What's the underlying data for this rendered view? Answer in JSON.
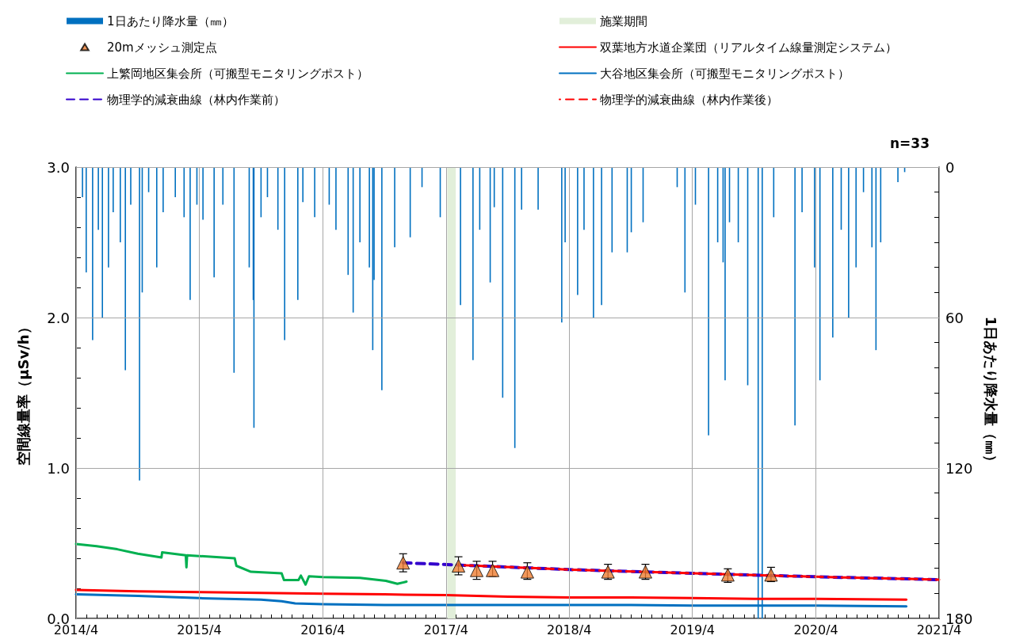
{
  "chart_data": {
    "type": "line",
    "ylabel": "空間線量率（μSv/h）",
    "y2label": "1日あたり降水量（㎜）",
    "annotations": [
      "n=33"
    ],
    "legend": "top",
    "grid": true,
    "xlim": [
      "2014-04-01",
      "2021-04-01"
    ],
    "xticks": [
      {
        "value": "2014-04-01",
        "label": "2014/4"
      },
      {
        "value": "2014-05-01",
        "label": null
      },
      {
        "value": "2014-06-01",
        "label": null
      },
      {
        "value": "2014-07-01",
        "label": null
      },
      {
        "value": "2014-08-01",
        "label": null
      },
      {
        "value": "2014-09-01",
        "label": null
      },
      {
        "value": "2014-10-01",
        "label": null
      },
      {
        "value": "2014-11-01",
        "label": null
      },
      {
        "value": "2014-12-01",
        "label": null
      },
      {
        "value": "2015-01-01",
        "label": null
      },
      {
        "value": "2015-02-01",
        "label": null
      },
      {
        "value": "2015-03-01",
        "label": null
      },
      {
        "value": "2015-04-01",
        "label": "2015/4"
      },
      {
        "value": "2015-05-01",
        "label": null
      },
      {
        "value": "2015-06-01",
        "label": null
      },
      {
        "value": "2015-07-01",
        "label": null
      },
      {
        "value": "2015-08-01",
        "label": null
      },
      {
        "value": "2015-09-01",
        "label": null
      },
      {
        "value": "2015-10-01",
        "label": null
      },
      {
        "value": "2015-11-01",
        "label": null
      },
      {
        "value": "2015-12-01",
        "label": null
      },
      {
        "value": "2016-01-01",
        "label": null
      },
      {
        "value": "2016-02-01",
        "label": null
      },
      {
        "value": "2016-03-01",
        "label": null
      },
      {
        "value": "2016-04-01",
        "label": "2016/4"
      },
      {
        "value": "2016-05-01",
        "label": null
      },
      {
        "value": "2016-06-01",
        "label": null
      },
      {
        "value": "2016-07-01",
        "label": null
      },
      {
        "value": "2016-08-01",
        "label": null
      },
      {
        "value": "2016-09-01",
        "label": null
      },
      {
        "value": "2016-10-01",
        "label": null
      },
      {
        "value": "2016-11-01",
        "label": null
      },
      {
        "value": "2016-12-01",
        "label": null
      },
      {
        "value": "2017-01-01",
        "label": null
      },
      {
        "value": "2017-02-01",
        "label": null
      },
      {
        "value": "2017-03-01",
        "label": null
      },
      {
        "value": "2017-04-01",
        "label": "2017/4"
      },
      {
        "value": "2017-05-01",
        "label": null
      },
      {
        "value": "2017-06-01",
        "label": null
      },
      {
        "value": "2017-07-01",
        "label": null
      },
      {
        "value": "2017-08-01",
        "label": null
      },
      {
        "value": "2017-09-01",
        "label": null
      },
      {
        "value": "2017-10-01",
        "label": null
      },
      {
        "value": "2017-11-01",
        "label": null
      },
      {
        "value": "2017-12-01",
        "label": null
      },
      {
        "value": "2018-01-01",
        "label": null
      },
      {
        "value": "2018-02-01",
        "label": null
      },
      {
        "value": "2018-03-01",
        "label": null
      },
      {
        "value": "2018-04-01",
        "label": "2018/4"
      },
      {
        "value": "2018-05-01",
        "label": null
      },
      {
        "value": "2018-06-01",
        "label": null
      },
      {
        "value": "2018-07-01",
        "label": null
      },
      {
        "value": "2018-08-01",
        "label": null
      },
      {
        "value": "2018-09-01",
        "label": null
      },
      {
        "value": "2018-10-01",
        "label": null
      },
      {
        "value": "2018-11-01",
        "label": null
      },
      {
        "value": "2018-12-01",
        "label": null
      },
      {
        "value": "2019-01-01",
        "label": null
      },
      {
        "value": "2019-02-01",
        "label": null
      },
      {
        "value": "2019-03-01",
        "label": null
      },
      {
        "value": "2019-04-01",
        "label": "2019/4"
      },
      {
        "value": "2019-05-01",
        "label": null
      },
      {
        "value": "2019-06-01",
        "label": null
      },
      {
        "value": "2019-07-01",
        "label": null
      },
      {
        "value": "2019-08-01",
        "label": null
      },
      {
        "value": "2019-09-01",
        "label": null
      },
      {
        "value": "2019-10-01",
        "label": null
      },
      {
        "value": "2019-11-01",
        "label": null
      },
      {
        "value": "2019-12-01",
        "label": null
      },
      {
        "value": "2020-01-01",
        "label": null
      },
      {
        "value": "2020-02-01",
        "label": null
      },
      {
        "value": "2020-03-01",
        "label": null
      },
      {
        "value": "2020-04-01",
        "label": "2020/4"
      },
      {
        "value": "2020-05-01",
        "label": null
      },
      {
        "value": "2020-06-01",
        "label": null
      },
      {
        "value": "2020-07-01",
        "label": null
      },
      {
        "value": "2020-08-01",
        "label": null
      },
      {
        "value": "2020-09-01",
        "label": null
      },
      {
        "value": "2020-10-01",
        "label": null
      },
      {
        "value": "2020-11-01",
        "label": null
      },
      {
        "value": "2020-12-01",
        "label": null
      },
      {
        "value": "2021-01-01",
        "label": null
      },
      {
        "value": "2021-02-01",
        "label": null
      },
      {
        "value": "2021-03-01",
        "label": null
      },
      {
        "value": "2021-04-01",
        "label": "2021/4"
      }
    ],
    "ylim": [
      0,
      3
    ],
    "yticks": [
      {
        "value": 0,
        "label": "0.0"
      },
      {
        "value": 0.2,
        "label": null
      },
      {
        "value": 0.4,
        "label": null
      },
      {
        "value": 0.6,
        "label": null
      },
      {
        "value": 0.8,
        "label": null
      },
      {
        "value": 1,
        "label": "1.0"
      },
      {
        "value": 1.2,
        "label": null
      },
      {
        "value": 1.4,
        "label": null
      },
      {
        "value": 1.6,
        "label": null
      },
      {
        "value": 1.8,
        "label": null
      },
      {
        "value": 2,
        "label": "2.0"
      },
      {
        "value": 2.2,
        "label": null
      },
      {
        "value": 2.4,
        "label": null
      },
      {
        "value": 2.6,
        "label": null
      },
      {
        "value": 2.8,
        "label": null
      },
      {
        "value": 3,
        "label": "3.0"
      }
    ],
    "y2lim": [
      180,
      0
    ],
    "y2ticks": [
      0,
      {
        "value": 10,
        "label": null
      },
      {
        "value": 20,
        "label": null
      },
      {
        "value": 30,
        "label": null
      },
      {
        "value": 40,
        "label": null
      },
      {
        "value": 50,
        "label": null
      },
      60,
      {
        "value": 70,
        "label": null
      },
      {
        "value": 80,
        "label": null
      },
      {
        "value": 90,
        "label": null
      },
      {
        "value": 100,
        "label": null
      },
      {
        "value": 110,
        "label": null
      },
      120,
      {
        "value": 130,
        "label": null
      },
      {
        "value": 140,
        "label": null
      },
      {
        "value": 150,
        "label": null
      },
      {
        "value": 160,
        "label": null
      },
      {
        "value": 170,
        "label": null
      },
      180
    ],
    "bands": [
      {
        "axis": "x",
        "from": "2017-04-05",
        "to": "2017-04-30",
        "label": "施業期間",
        "color": "#e2efda"
      }
    ],
    "series": [
      {
        "name": "1日あたり降水量（㎜）",
        "type": "bar",
        "axis": "y2",
        "color": "#0070c0",
        "x": [
          "2014-04-20",
          "2014-05-01",
          "2014-05-20",
          "2014-06-06",
          "2014-06-18",
          "2014-07-06",
          "2014-07-20",
          "2014-08-10",
          "2014-08-25",
          "2014-09-10",
          "2014-10-06",
          "2014-10-14",
          "2014-11-02",
          "2014-11-26",
          "2014-12-15",
          "2015-01-20",
          "2015-02-15",
          "2015-03-05",
          "2015-03-25",
          "2015-04-12",
          "2015-05-15",
          "2015-06-10",
          "2015-07-13",
          "2015-08-27",
          "2015-09-08",
          "2015-09-10",
          "2015-10-01",
          "2015-10-20",
          "2015-11-20",
          "2015-12-10",
          "2016-01-18",
          "2016-02-02",
          "2016-03-08",
          "2016-04-20",
          "2016-05-10",
          "2016-06-15",
          "2016-06-30",
          "2016-07-20",
          "2016-08-17",
          "2016-08-27",
          "2016-08-31",
          "2016-09-23",
          "2016-10-31",
          "2016-12-16",
          "2017-01-20",
          "2017-03-15",
          "2017-05-14",
          "2017-06-20",
          "2017-07-10",
          "2017-08-10",
          "2017-08-22",
          "2017-09-16",
          "2017-10-22",
          "2017-11-11",
          "2017-12-30",
          "2018-03-10",
          "2018-03-20",
          "2018-04-26",
          "2018-05-15",
          "2018-06-12",
          "2018-07-06",
          "2018-08-06",
          "2018-09-20",
          "2018-10-02",
          "2018-11-06",
          "2019-02-15",
          "2019-03-10",
          "2019-04-10",
          "2019-05-19",
          "2019-06-15",
          "2019-07-01",
          "2019-07-07",
          "2019-07-20",
          "2019-08-15",
          "2019-09-12",
          "2019-10-13",
          "2019-10-25",
          "2019-11-28",
          "2020-01-30",
          "2020-02-20",
          "2020-03-28",
          "2020-04-13",
          "2020-05-21",
          "2020-06-15",
          "2020-07-07",
          "2020-07-29",
          "2020-08-20",
          "2020-09-14",
          "2020-09-26",
          "2020-10-10",
          "2020-11-30",
          "2020-12-20"
        ],
        "values": [
          12,
          42,
          69,
          25,
          60,
          40,
          18,
          30,
          81,
          15,
          125,
          50,
          10,
          40,
          18,
          12,
          20,
          53,
          15,
          21,
          44,
          15,
          82,
          40,
          53,
          104,
          20,
          12,
          25,
          69,
          53,
          14,
          20,
          15,
          25,
          43,
          58,
          30,
          40,
          73,
          45,
          89,
          32,
          28,
          8,
          20,
          55,
          77,
          25,
          46,
          16,
          92,
          112,
          17,
          17,
          62,
          30,
          51,
          25,
          60,
          55,
          34,
          34,
          26,
          22,
          8,
          50,
          15,
          107,
          30,
          38,
          85,
          22,
          30,
          87,
          180,
          180,
          20,
          103,
          18,
          40,
          85,
          68,
          25,
          60,
          40,
          10,
          32,
          73,
          30,
          6,
          2
        ]
      },
      {
        "name": "20mメッシュ測定点",
        "type": "scatter",
        "marker": "triangle",
        "color": "#ed7d31",
        "x": [
          "2016-11-25",
          "2017-05-08",
          "2017-07-01",
          "2017-08-17",
          "2017-11-28",
          "2018-07-25",
          "2018-11-13",
          "2019-07-15",
          "2019-11-20"
        ],
        "values": [
          0.37,
          0.35,
          0.32,
          0.32,
          0.31,
          0.31,
          0.31,
          0.29,
          0.29
        ],
        "errors": [
          [
            0.31,
            0.43
          ],
          [
            0.29,
            0.41
          ],
          [
            0.26,
            0.38
          ],
          [
            0.28,
            0.38
          ],
          [
            0.26,
            0.37
          ],
          [
            0.26,
            0.36
          ],
          [
            0.26,
            0.36
          ],
          [
            0.24,
            0.33
          ],
          [
            0.245,
            0.34
          ]
        ]
      },
      {
        "name": "双葉地方水道企業団（リアルタイム線量測定システム）",
        "color": "#ff0000",
        "x": [
          "2014-04-01",
          "2014-10-01",
          "2015-04-01",
          "2015-10-01",
          "2016-04-01",
          "2016-10-01",
          "2017-04-01",
          "2017-10-01",
          "2018-04-01",
          "2018-10-01",
          "2019-04-01",
          "2019-10-01",
          "2020-04-01",
          "2020-12-25"
        ],
        "values": [
          0.19,
          0.18,
          0.175,
          0.17,
          0.165,
          0.16,
          0.155,
          0.145,
          0.14,
          0.14,
          0.135,
          0.13,
          0.13,
          0.125
        ]
      },
      {
        "name": "上繁岡地区集会所（可搬型モニタリングポスト）",
        "color": "#00b050",
        "x": [
          "2014-04-01",
          "2014-06-01",
          "2014-08-01",
          "2014-10-01",
          "2014-12-10",
          "2014-12-12",
          "2015-02-20",
          "2015-02-22",
          "2015-02-24",
          "2015-04-01",
          "2015-07-15",
          "2015-07-20",
          "2015-09-01",
          "2015-12-01",
          "2015-12-08",
          "2016-01-20",
          "2016-01-27",
          "2016-02-10",
          "2016-02-20",
          "2016-04-01",
          "2016-07-20",
          "2016-10-05",
          "2016-11-08",
          "2016-12-05"
        ],
        "values": [
          0.495,
          0.48,
          0.46,
          0.43,
          0.405,
          0.44,
          0.42,
          0.34,
          0.42,
          0.415,
          0.4,
          0.35,
          0.31,
          0.3,
          0.255,
          0.255,
          0.285,
          0.225,
          0.28,
          0.275,
          0.27,
          0.25,
          0.23,
          0.245
        ]
      },
      {
        "name": "大谷地区集会所（可搬型モニタリングポスト）",
        "color": "#0070c0",
        "x": [
          "2014-04-01",
          "2014-10-01",
          "2015-04-01",
          "2015-10-01",
          "2015-12-01",
          "2016-01-10",
          "2016-04-01",
          "2016-10-01",
          "2017-04-01",
          "2017-10-01",
          "2018-04-01",
          "2018-10-01",
          "2019-04-01",
          "2019-10-01",
          "2020-04-01",
          "2020-12-25"
        ],
        "values": [
          0.16,
          0.15,
          0.135,
          0.125,
          0.115,
          0.1,
          0.095,
          0.09,
          0.09,
          0.09,
          0.09,
          0.09,
          0.085,
          0.085,
          0.085,
          0.08
        ]
      },
      {
        "name": "物理学的減衰曲線（林内作業前）",
        "line_style": "dashed",
        "color": "#3300cc",
        "x": [
          "2016-11-25",
          "2017-05-08",
          "2018-04-01",
          "2019-04-01",
          "2020-04-01",
          "2021-04-01"
        ],
        "values": [
          0.37,
          0.355,
          0.325,
          0.3,
          0.277,
          0.258
        ]
      },
      {
        "name": "物理学的減衰曲線（林内作業後）",
        "line_style": "dashed",
        "color": "#ff0000",
        "x": [
          "2017-05-08",
          "2018-04-01",
          "2019-04-01",
          "2020-04-01",
          "2021-04-01"
        ],
        "values": [
          0.355,
          0.325,
          0.3,
          0.277,
          0.258
        ]
      }
    ]
  }
}
